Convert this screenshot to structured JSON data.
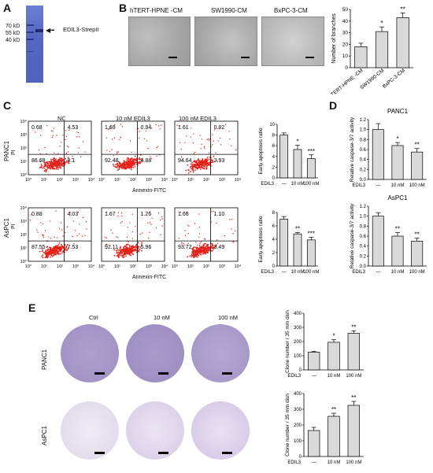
{
  "panels": {
    "A": {
      "letter": "A",
      "ladder": [
        "70 kD",
        "55 kD",
        "40 kD"
      ],
      "band_label": "EDIL3-StrepII"
    },
    "B": {
      "letter": "B",
      "images": [
        "hTERT-HPNE -CM",
        "SW1990-CM",
        "BxPC-3-CM"
      ],
      "chart": {
        "ylabel": "Number of branches",
        "ticks": [
          "0",
          "10",
          "20",
          "30",
          "40",
          "50"
        ],
        "categories": [
          "hTERT-HPNE -CM",
          "SW1990-CM",
          "BxPC-3-CM"
        ],
        "sig": [
          "",
          "*",
          "**"
        ]
      }
    },
    "C": {
      "letter": "C",
      "conditions": [
        "NC",
        "10 nM EDIL3",
        "100 nM EDIL3"
      ],
      "rows": [
        {
          "cell": "PANC1",
          "yaxis": "PI",
          "quads": [
            [
              "0.68",
              "4.53",
              "86.68",
              "8.1"
            ],
            [
              "1.69",
              "0.94",
              "92.48",
              "4.88"
            ],
            [
              "1.61",
              "0.82",
              "94.64",
              "2.93"
            ]
          ]
        },
        {
          "cell": "AsPC1",
          "yaxis": "PI",
          "quads": [
            [
              "0.88",
              "4.03",
              "87.55",
              "7.53"
            ],
            [
              "1.67",
              "1.26",
              "92.11",
              "5.96"
            ],
            [
              "1.68",
              "1.10",
              "93.72",
              "3.49"
            ]
          ]
        }
      ],
      "xaxis": "Annexin-FITC",
      "decades": [
        "10°",
        "10¹",
        "10²",
        "10³",
        "10⁴"
      ],
      "bar_ylabel": "Early apoptosis ratio",
      "bar_x": [
        "EDIL3",
        "—",
        "10 nM",
        "100 nM"
      ],
      "panc1_ticks": [
        "0",
        "2",
        "4",
        "6",
        "8",
        "10"
      ],
      "panc1_sig": [
        "",
        "*",
        "***"
      ],
      "aspc1_ticks": [
        "0",
        "2",
        "4",
        "6",
        "8"
      ],
      "aspc1_sig": [
        "",
        "**",
        "***"
      ]
    },
    "D": {
      "letter": "D",
      "titles": [
        "PANC1",
        "AsPC1"
      ],
      "ylabel": "Relative caspase-3/7 activity",
      "ticks": [
        "0.0",
        "0.2",
        "0.4",
        "0.6",
        "0.8",
        "1.0",
        "1.2"
      ],
      "x": [
        "EDIL3",
        "—",
        "10 nM",
        "100 nM"
      ],
      "panc1_sig": [
        "",
        "*",
        "**"
      ],
      "aspc1_sig": [
        "",
        "**",
        "**"
      ]
    },
    "E": {
      "letter": "E",
      "conditions": [
        "Ctrl",
        "10 nM",
        "100 nM"
      ],
      "rows": [
        "PANC1",
        "AsPC1"
      ],
      "ylabel": "Clone number / 35 mm dish",
      "x": [
        "EDIL3",
        "—",
        "10 nM",
        "100 nM"
      ],
      "panc1_ticks": [
        "0",
        "100",
        "200",
        "300",
        "400"
      ],
      "panc1_sig": [
        "",
        "*",
        "**"
      ],
      "aspc1_ticks": [
        "0",
        "100",
        "200",
        "300",
        "400"
      ],
      "aspc1_sig": [
        "",
        "**",
        "**"
      ]
    }
  },
  "chart_data": [
    {
      "type": "bar",
      "categories": [
        "hTERT-HPNE -CM",
        "SW1990-CM",
        "BxPC-3-CM"
      ],
      "values": [
        18,
        31,
        43
      ],
      "errors": [
        3,
        4,
        4
      ],
      "ylim": [
        0,
        50
      ],
      "ylabel": "Number of branches"
    },
    {
      "type": "bar",
      "categories": [
        "—",
        "10 nM",
        "100 nM"
      ],
      "values": [
        8.0,
        5.3,
        3.6
      ],
      "errors": [
        0.4,
        0.8,
        0.7
      ],
      "ylim": [
        0,
        10
      ],
      "ylabel": "Early apoptosis ratio",
      "title": "PANC1"
    },
    {
      "type": "bar",
      "categories": [
        "—",
        "10 nM",
        "100 nM"
      ],
      "values": [
        7.0,
        4.8,
        3.9
      ],
      "errors": [
        0.4,
        0.2,
        0.4
      ],
      "ylim": [
        0,
        8
      ],
      "ylabel": "Early apoptosis ratio",
      "title": "AsPC1"
    },
    {
      "type": "bar",
      "categories": [
        "—",
        "10 nM",
        "100 nM"
      ],
      "values": [
        1.0,
        0.68,
        0.55
      ],
      "errors": [
        0.12,
        0.06,
        0.07
      ],
      "ylim": [
        0,
        1.2
      ],
      "ylabel": "Relative caspase-3/7 activity",
      "title": "PANC1"
    },
    {
      "type": "bar",
      "categories": [
        "—",
        "10 nM",
        "100 nM"
      ],
      "values": [
        1.0,
        0.6,
        0.5
      ],
      "errors": [
        0.07,
        0.07,
        0.06
      ],
      "ylim": [
        0,
        1.2
      ],
      "ylabel": "Relative caspase-3/7 activity",
      "title": "AsPC1"
    },
    {
      "type": "bar",
      "categories": [
        "—",
        "10 nM",
        "100 nM"
      ],
      "values": [
        125,
        195,
        258
      ],
      "errors": [
        5,
        18,
        18
      ],
      "ylim": [
        0,
        400
      ],
      "ylabel": "Clone number / 35 mm dish",
      "title": "PANC1"
    },
    {
      "type": "bar",
      "categories": [
        "—",
        "10 nM",
        "100 nM"
      ],
      "values": [
        165,
        255,
        325
      ],
      "errors": [
        20,
        20,
        25
      ],
      "ylim": [
        0,
        400
      ],
      "ylabel": "Clone number / 35 mm dish",
      "title": "AsPC1"
    }
  ],
  "colors": {
    "gel_blue": "#5a6ec8",
    "band": "#2b3a8c",
    "bar": "#d9d9d9",
    "dot": "#e4231b",
    "plate_purple": "#a79ac8",
    "plate_aspc1": "#e7e2ee"
  }
}
